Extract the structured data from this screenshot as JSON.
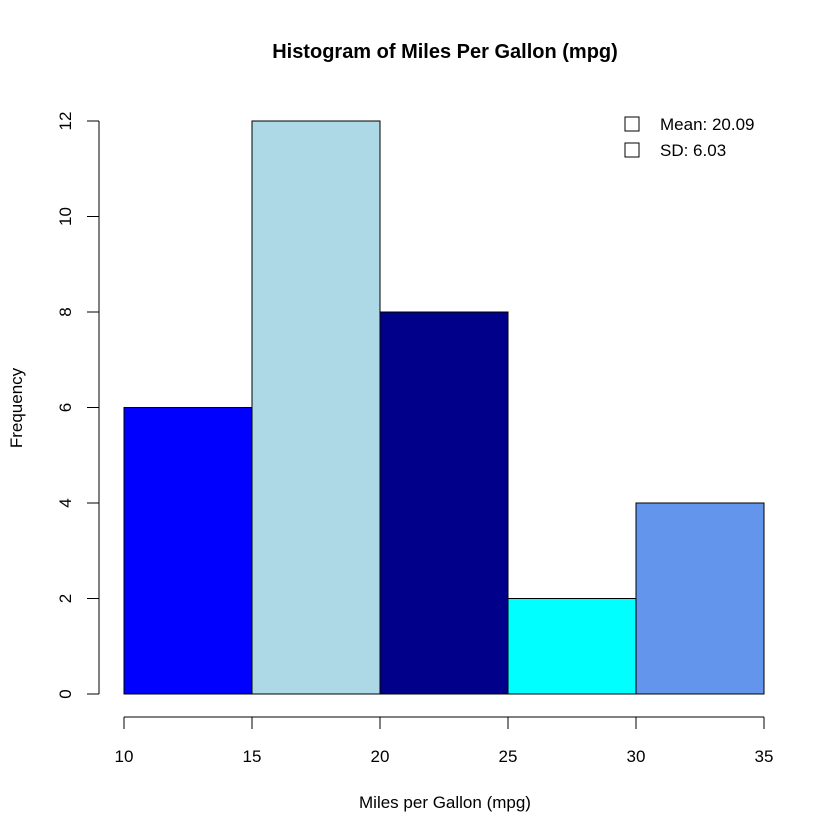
{
  "chart_data": {
    "type": "bar",
    "title": "Histogram of Miles Per Gallon (mpg)",
    "xlabel": "Miles per Gallon (mpg)",
    "ylabel": "Frequency",
    "bins": [
      [
        10,
        15
      ],
      [
        15,
        20
      ],
      [
        20,
        25
      ],
      [
        25,
        30
      ],
      [
        30,
        35
      ]
    ],
    "values": [
      6,
      12,
      8,
      2,
      4
    ],
    "colors": [
      "#0000FF",
      "#ADD8E6",
      "#00008B",
      "#00FFFF",
      "#6495ED"
    ],
    "xlim": [
      10,
      35
    ],
    "ylim": [
      0,
      12
    ],
    "x_ticks": [
      10,
      15,
      20,
      25,
      30,
      35
    ],
    "y_ticks": [
      0,
      2,
      4,
      6,
      8,
      10,
      12
    ],
    "grid": false,
    "legend": {
      "position": "top-right",
      "entries": [
        "Mean: 20.09",
        "SD: 6.03"
      ]
    }
  }
}
